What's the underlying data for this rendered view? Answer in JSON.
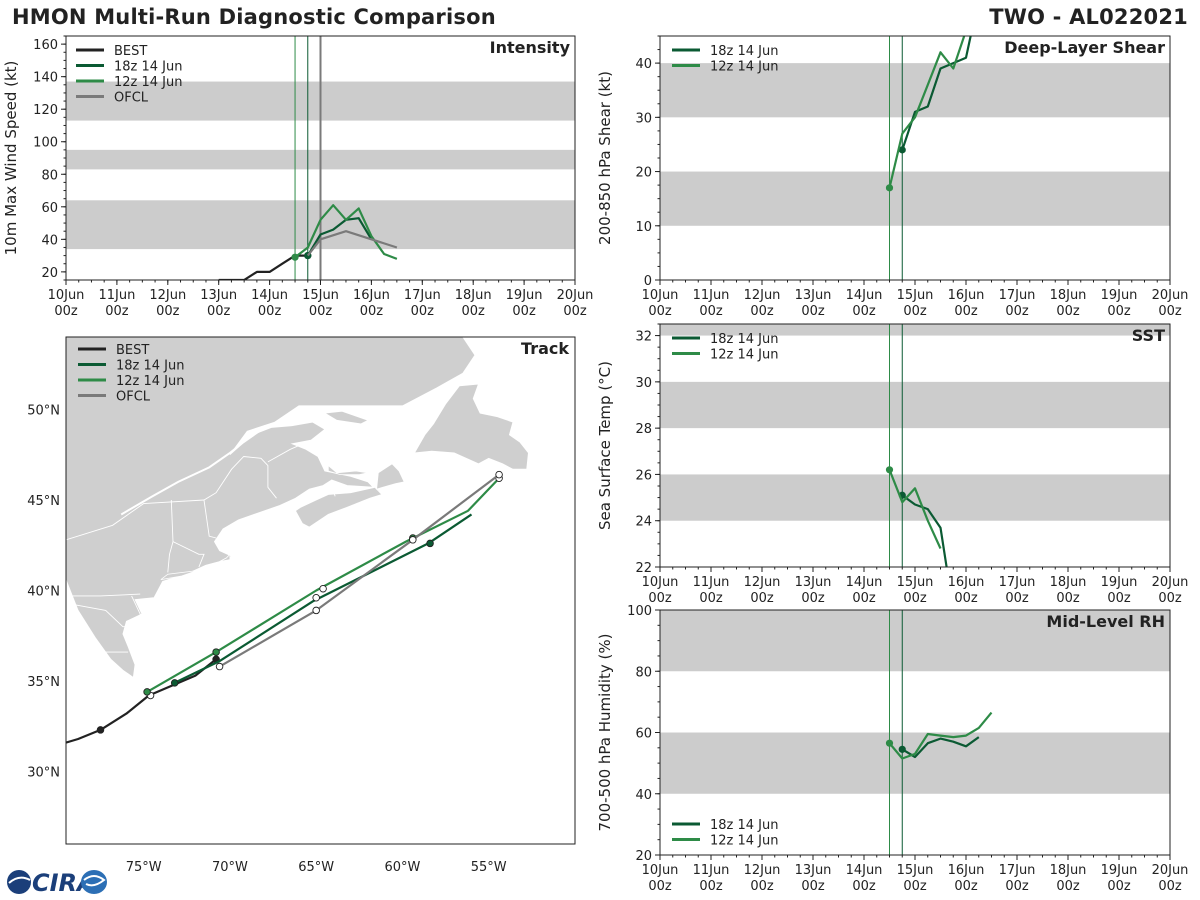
{
  "header": {
    "title_left": "HMON Multi-Run Diagnostic Comparison",
    "title_right": "TWO - AL022021"
  },
  "logo": {
    "text": "CIRA",
    "colors": {
      "primary": "#1b3f7a",
      "accent": "#e23b2e"
    }
  },
  "colors": {
    "best": "#222222",
    "run18": "#0b5a33",
    "run12": "#2e8b47",
    "ofcl": "#7a7a7a",
    "band": "#cccccc",
    "land": "#cfcfcf"
  },
  "time_ticks": [
    "10Jun\n00z",
    "11Jun\n00z",
    "12Jun\n00z",
    "13Jun\n00z",
    "14Jun\n00z",
    "15Jun\n00z",
    "16Jun\n00z",
    "17Jun\n00z",
    "18Jun\n00z",
    "19Jun\n00z",
    "20Jun\n00z"
  ],
  "chart_data": [
    {
      "id": "intensity",
      "type": "line",
      "title": "Intensity",
      "ylabel": "10m Max Wind Speed (kt)",
      "xlim": [
        0,
        10
      ],
      "ylim": [
        15,
        165
      ],
      "yticks": [
        20,
        40,
        60,
        80,
        100,
        120,
        140,
        160
      ],
      "bands": [
        [
          34,
          64
        ],
        [
          83,
          95
        ],
        [
          113,
          137
        ]
      ],
      "vlines": [
        {
          "x": 4.5,
          "series": "run12"
        },
        {
          "x": 4.75,
          "series": "run18"
        },
        {
          "x": 5.0,
          "series": "ofcl"
        }
      ],
      "legend": [
        "BEST",
        "18z 14 Jun",
        "12z 14 Jun",
        "OFCL"
      ],
      "series": [
        {
          "name": "BEST",
          "key": "best",
          "x": [
            3.0,
            3.25,
            3.5,
            3.75,
            4.0,
            4.25,
            4.5,
            4.75
          ],
          "y": [
            15,
            15,
            15,
            20,
            20,
            25,
            30,
            30
          ],
          "markers": [
            4.75
          ]
        },
        {
          "name": "18z 14 Jun",
          "key": "run18",
          "x": [
            4.75,
            5.0,
            5.25,
            5.5,
            5.75,
            6.0
          ],
          "y": [
            30,
            43,
            46,
            52,
            53,
            40
          ],
          "markers": [
            4.75
          ]
        },
        {
          "name": "12z 14 Jun",
          "key": "run12",
          "x": [
            4.5,
            4.75,
            5.0,
            5.25,
            5.5,
            5.75,
            6.0,
            6.25,
            6.5
          ],
          "y": [
            29,
            35,
            52,
            61,
            52,
            59,
            42,
            31,
            28
          ],
          "markers": [
            4.5
          ]
        },
        {
          "name": "OFCL",
          "key": "ofcl",
          "x": [
            4.75,
            5.0,
            5.5,
            6.0,
            6.5
          ],
          "y": [
            30,
            40,
            45,
            40,
            35
          ],
          "markers": []
        }
      ]
    },
    {
      "id": "shear",
      "type": "line",
      "title": "Deep-Layer Shear",
      "ylabel": "200-850 hPa Shear (kt)",
      "xlim": [
        0,
        10
      ],
      "ylim": [
        0,
        45
      ],
      "yticks": [
        0,
        10,
        20,
        30,
        40
      ],
      "bands": [
        [
          10,
          20
        ],
        [
          30,
          40
        ]
      ],
      "vlines": [
        {
          "x": 4.5,
          "series": "run12"
        },
        {
          "x": 4.75,
          "series": "run18"
        }
      ],
      "legend": [
        "18z 14 Jun",
        "12z 14 Jun"
      ],
      "series": [
        {
          "name": "18z 14 Jun",
          "key": "run18",
          "x": [
            4.75,
            5.0,
            5.25,
            5.5,
            5.75,
            6.0,
            6.25
          ],
          "y": [
            24,
            31,
            32,
            39,
            40,
            41,
            52
          ],
          "markers": [
            4.75
          ]
        },
        {
          "name": "12z 14 Jun",
          "key": "run12",
          "x": [
            4.5,
            4.75,
            5.0,
            5.25,
            5.5,
            5.75,
            6.0,
            6.25
          ],
          "y": [
            17,
            27,
            30,
            36,
            42,
            39,
            46,
            52
          ],
          "markers": [
            4.5
          ]
        }
      ]
    },
    {
      "id": "sst",
      "type": "line",
      "title": "SST",
      "ylabel": "Sea Surface Temp (°C)",
      "xlim": [
        0,
        10
      ],
      "ylim": [
        22,
        32.5
      ],
      "yticks": [
        22,
        24,
        26,
        28,
        30,
        32
      ],
      "bands": [
        [
          24,
          26
        ],
        [
          28,
          30
        ],
        [
          32,
          34
        ]
      ],
      "vlines": [
        {
          "x": 4.5,
          "series": "run12"
        },
        {
          "x": 4.75,
          "series": "run18"
        }
      ],
      "legend": [
        "18z 14 Jun",
        "12z 14 Jun"
      ],
      "series": [
        {
          "name": "18z 14 Jun",
          "key": "run18",
          "x": [
            4.75,
            5.0,
            5.25,
            5.5,
            5.62
          ],
          "y": [
            25.1,
            24.7,
            24.5,
            23.7,
            22.0
          ],
          "markers": [
            4.75
          ]
        },
        {
          "name": "12z 14 Jun",
          "key": "run12",
          "x": [
            4.5,
            4.75,
            5.0,
            5.25,
            5.5
          ],
          "y": [
            26.2,
            24.8,
            25.4,
            24.0,
            22.8
          ],
          "markers": [
            4.5
          ]
        }
      ]
    },
    {
      "id": "rh",
      "type": "line",
      "title": "Mid-Level RH",
      "ylabel": "700-500 hPa Humidity (%)",
      "xlim": [
        0,
        10
      ],
      "ylim": [
        20,
        100
      ],
      "yticks": [
        20,
        40,
        60,
        80,
        100
      ],
      "bands": [
        [
          40,
          60
        ],
        [
          80,
          100
        ]
      ],
      "vlines": [
        {
          "x": 4.5,
          "series": "run12"
        },
        {
          "x": 4.75,
          "series": "run18"
        }
      ],
      "legend": [
        "18z 14 Jun",
        "12z 14 Jun"
      ],
      "series": [
        {
          "name": "18z 14 Jun",
          "key": "run18",
          "x": [
            4.75,
            5.0,
            5.25,
            5.5,
            5.75,
            6.0,
            6.25
          ],
          "y": [
            54.5,
            52,
            56.5,
            58,
            57,
            55.5,
            58.5
          ],
          "markers": [
            4.75
          ]
        },
        {
          "name": "12z 14 Jun",
          "key": "run12",
          "x": [
            4.5,
            4.75,
            5.0,
            5.25,
            5.5,
            5.75,
            6.0,
            6.25,
            6.5
          ],
          "y": [
            56.5,
            51.5,
            53,
            59.5,
            59,
            58.5,
            59,
            61.5,
            66.5
          ],
          "markers": [
            4.5
          ]
        }
      ]
    },
    {
      "id": "track",
      "type": "scatter",
      "title": "Track",
      "xlim": [
        -79.5,
        -50
      ],
      "ylim": [
        26,
        54
      ],
      "xticks": [
        {
          "v": -75,
          "label": "75°W"
        },
        {
          "v": -70,
          "label": "70°W"
        },
        {
          "v": -65,
          "label": "65°W"
        },
        {
          "v": -60,
          "label": "60°W"
        },
        {
          "v": -55,
          "label": "55°W"
        }
      ],
      "yticks": [
        {
          "v": 30,
          "label": "30°N"
        },
        {
          "v": 35,
          "label": "35°N"
        },
        {
          "v": 40,
          "label": "40°N"
        },
        {
          "v": 45,
          "label": "45°N"
        },
        {
          "v": 50,
          "label": "50°N"
        }
      ],
      "legend": [
        "BEST",
        "18z 14 Jun",
        "12z 14 Jun",
        "OFCL"
      ],
      "series": [
        {
          "name": "BEST",
          "key": "best",
          "lon": [
            -79.5,
            -78.8,
            -77.5,
            -76,
            -74.7,
            -72,
            -70.8
          ],
          "lat": [
            31.6,
            31.8,
            32.3,
            33.2,
            34.2,
            35.3,
            36.2
          ],
          "markers": [
            {
              "lon": -77.5,
              "lat": 32.3,
              "fill": true
            },
            {
              "lon": -74.6,
              "lat": 34.2,
              "fill": false
            },
            {
              "lon": -70.8,
              "lat": 36.2,
              "fill": true
            }
          ]
        },
        {
          "name": "18z 14 Jun",
          "key": "run18",
          "lon": [
            -73.2,
            -70.6,
            -65.2,
            -58.5,
            -56.0
          ],
          "lat": [
            34.9,
            36.1,
            39.4,
            42.6,
            44.2
          ],
          "markers": [
            {
              "lon": -73.2,
              "lat": 34.9,
              "fill": true
            },
            {
              "lon": -65.0,
              "lat": 39.6,
              "fill": false
            },
            {
              "lon": -58.4,
              "lat": 42.6,
              "fill": true
            }
          ]
        },
        {
          "name": "12z 14 Jun",
          "key": "run12",
          "lon": [
            -74.8,
            -70.8,
            -65.0,
            -59.8,
            -56.2,
            -54.4
          ],
          "lat": [
            34.4,
            36.6,
            40.0,
            42.7,
            44.4,
            46.2
          ],
          "markers": [
            {
              "lon": -74.8,
              "lat": 34.4,
              "fill": true
            },
            {
              "lon": -70.8,
              "lat": 36.6,
              "fill": true
            },
            {
              "lon": -64.6,
              "lat": 40.1,
              "fill": false
            },
            {
              "lon": -59.4,
              "lat": 42.9,
              "fill": true
            },
            {
              "lon": -54.4,
              "lat": 46.2,
              "fill": false
            }
          ]
        },
        {
          "name": "OFCL",
          "key": "ofcl",
          "lon": [
            -70.6,
            -65.0,
            -59.4,
            -54.4
          ],
          "lat": [
            35.8,
            38.9,
            42.8,
            46.4
          ],
          "markers": [
            {
              "lon": -70.6,
              "lat": 35.8,
              "fill": false
            },
            {
              "lon": -65.0,
              "lat": 38.9,
              "fill": false
            },
            {
              "lon": -59.4,
              "lat": 42.8,
              "fill": false
            },
            {
              "lon": -54.4,
              "lat": 46.4,
              "fill": false
            }
          ]
        }
      ]
    }
  ]
}
